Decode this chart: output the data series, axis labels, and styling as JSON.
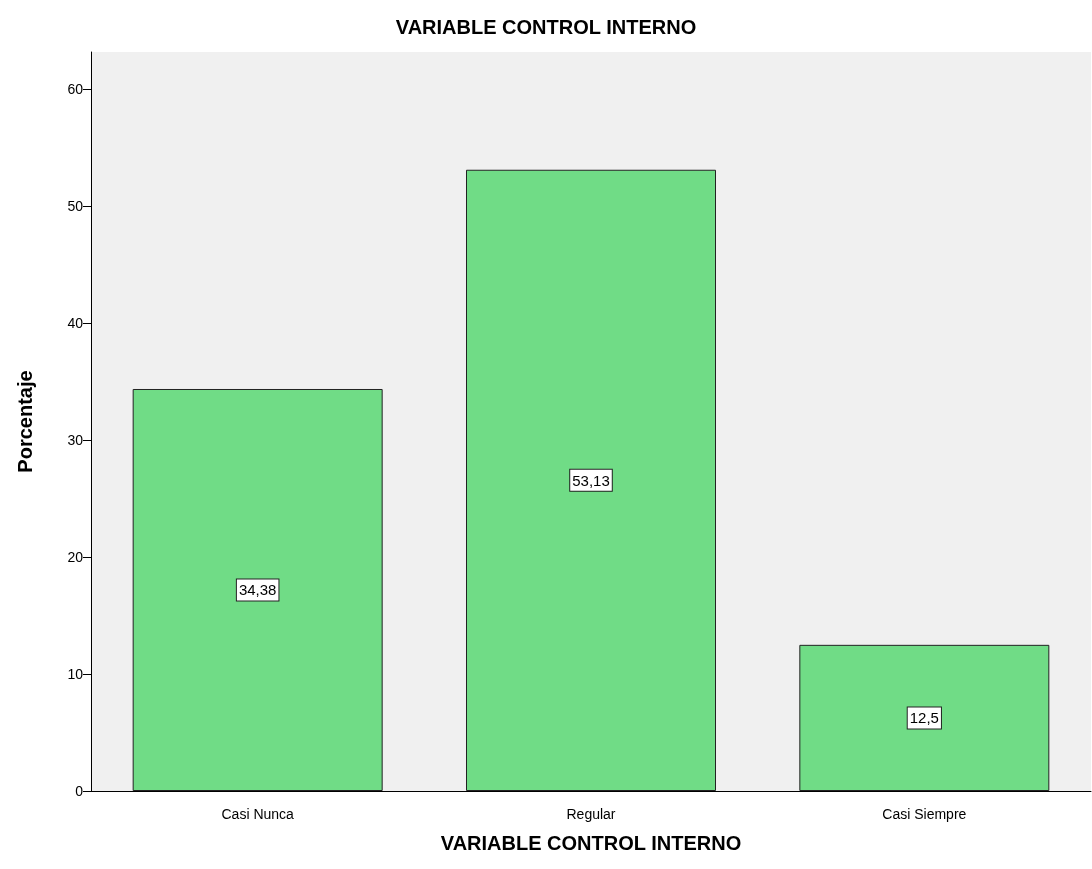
{
  "chart_data": {
    "type": "bar",
    "title": "VARIABLE CONTROL INTERNO",
    "xlabel": "VARIABLE CONTROL INTERNO",
    "ylabel": "Porcentaje",
    "categories": [
      "Casi Nunca",
      "Regular",
      "Casi Siempre"
    ],
    "values": [
      34.38,
      53.13,
      12.5
    ],
    "value_labels": [
      "34,38",
      "53,13",
      "12,5"
    ],
    "color": "#70dc86",
    "ylim": [
      0,
      63.2
    ],
    "yticks": [
      0,
      10,
      20,
      30,
      40,
      50,
      60
    ],
    "grid": false
  }
}
